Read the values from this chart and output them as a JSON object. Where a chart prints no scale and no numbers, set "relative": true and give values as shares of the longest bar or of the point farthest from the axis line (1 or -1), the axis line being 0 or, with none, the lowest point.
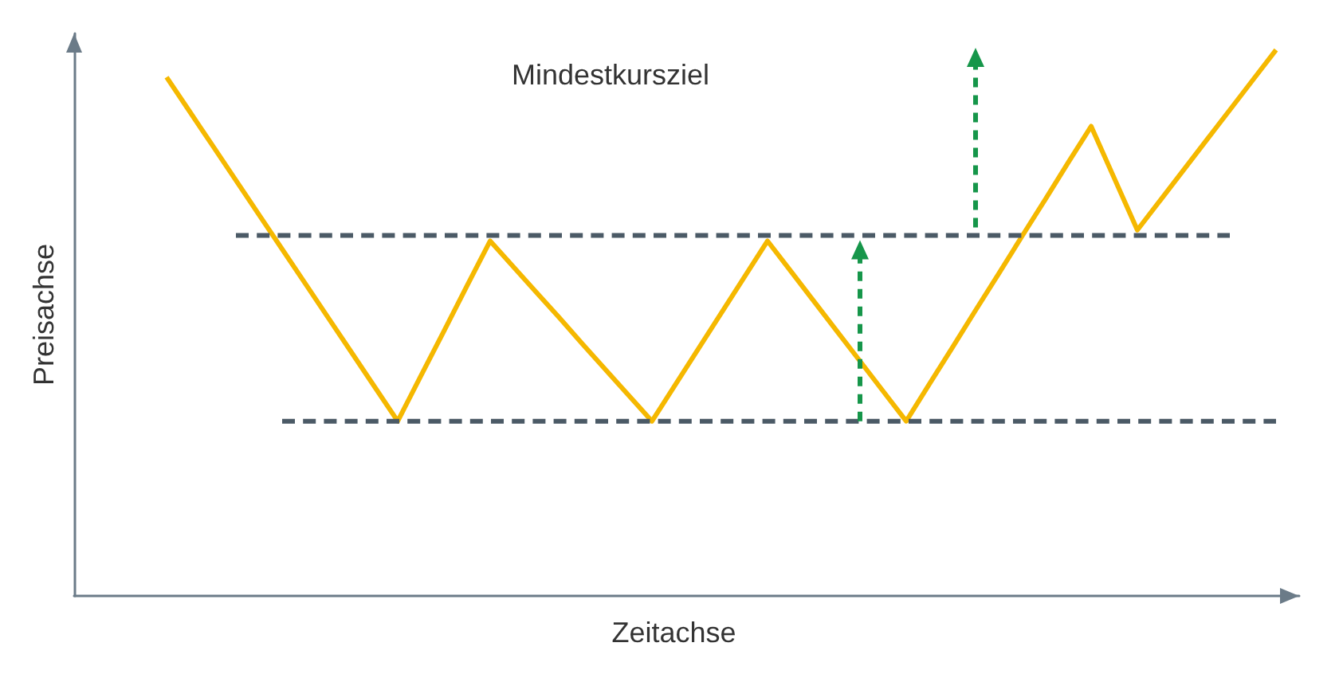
{
  "chart_data": {
    "type": "line",
    "relative": true,
    "grid": false,
    "marker": "none",
    "xlabel": "Zeitachse",
    "ylabel": "Preisachse",
    "annotations": [
      "Mindestkursziel"
    ],
    "categories": [
      null,
      null,
      null,
      null,
      null,
      null,
      null,
      null,
      null,
      null,
      null,
      null,
      null,
      null,
      null,
      null,
      null,
      null,
      null,
      null,
      null,
      null,
      null,
      null,
      null,
      null,
      null,
      null,
      null,
      null,
      null,
      null,
      null,
      null,
      null,
      null,
      null,
      null,
      null,
      null,
      null,
      null,
      null,
      null,
      null,
      null,
      null,
      null,
      null,
      null,
      null,
      null,
      null,
      null
    ],
    "series": [
      {
        "color": "#f5b800",
        "line_style": "solid",
        "values": [
          null,
          null,
          null,
          null,
          0.95,
          0.887,
          0.824,
          0.761,
          0.698,
          0.635,
          0.572,
          0.509,
          0.446,
          0.383,
          0.32,
          0.403,
          0.485,
          0.568,
          0.65,
          0.603,
          0.556,
          0.509,
          0.461,
          0.414,
          0.367,
          0.32,
          0.386,
          0.452,
          0.518,
          0.584,
          0.65,
          0.595,
          0.54,
          0.485,
          0.43,
          0.375,
          0.32,
          0.388,
          0.455,
          0.523,
          0.59,
          0.658,
          0.725,
          0.793,
          0.86,
          0.765,
          0.67,
          0.725,
          0.78,
          0.835,
          0.89,
          0.945,
          1,
          null
        ]
      },
      {
        "color": "#4b5a66",
        "line_style": "dashed",
        "values": [
          null,
          null,
          null,
          null,
          null,
          null,
          null,
          0.66,
          0.66,
          0.66,
          0.66,
          0.66,
          0.66,
          0.66,
          0.66,
          0.66,
          0.66,
          0.66,
          0.66,
          0.66,
          0.66,
          0.66,
          0.66,
          0.66,
          0.66,
          0.66,
          0.66,
          0.66,
          0.66,
          0.66,
          0.66,
          0.66,
          0.66,
          0.66,
          0.66,
          0.66,
          0.66,
          0.66,
          0.66,
          0.66,
          0.66,
          0.66,
          0.66,
          0.66,
          0.66,
          0.66,
          0.66,
          0.66,
          0.66,
          0.66,
          0.66,
          null,
          null,
          null
        ]
      },
      {
        "color": "#4b5a66",
        "line_style": "dashed",
        "values": [
          null,
          null,
          null,
          null,
          null,
          null,
          null,
          null,
          null,
          0.32,
          0.32,
          0.32,
          0.32,
          0.32,
          0.32,
          0.32,
          0.32,
          0.32,
          0.32,
          0.32,
          0.32,
          0.32,
          0.32,
          0.32,
          0.32,
          0.32,
          0.32,
          0.32,
          0.32,
          0.32,
          0.32,
          0.32,
          0.32,
          0.32,
          0.32,
          0.32,
          0.32,
          0.32,
          0.32,
          0.32,
          0.32,
          0.32,
          0.32,
          0.32,
          0.32,
          0.32,
          0.32,
          0.32,
          0.32,
          0.32,
          0.32,
          0.32,
          0.32,
          null
        ]
      }
    ]
  }
}
